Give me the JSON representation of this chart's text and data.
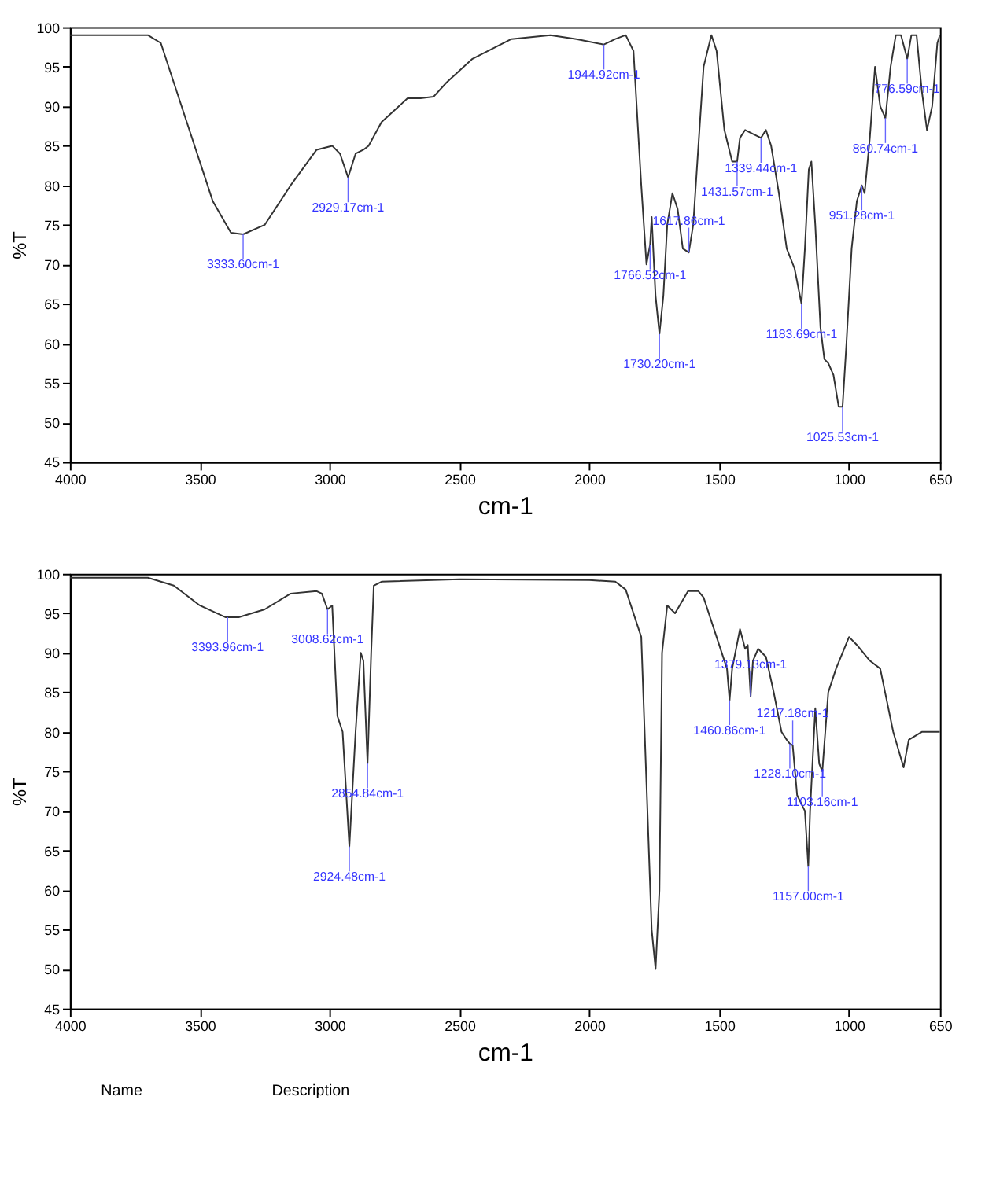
{
  "chart_data": [
    {
      "type": "line",
      "xlabel": "cm-1",
      "ylabel": "%T",
      "xlim": [
        4000,
        650
      ],
      "ylim": [
        45,
        100
      ],
      "xticks": [
        4000,
        3500,
        3000,
        2500,
        2000,
        1500,
        1000,
        650
      ],
      "yticks": [
        45,
        50,
        55,
        60,
        65,
        70,
        75,
        80,
        85,
        90,
        95,
        100
      ],
      "x": [
        4000,
        3700,
        3650,
        3550,
        3450,
        3380,
        3333,
        3250,
        3150,
        3050,
        2990,
        2960,
        2929,
        2900,
        2870,
        2850,
        2800,
        2700,
        2650,
        2600,
        2550,
        2450,
        2300,
        2150,
        2050,
        1944,
        1900,
        1860,
        1830,
        1800,
        1780,
        1766,
        1760,
        1745,
        1730,
        1715,
        1700,
        1680,
        1660,
        1640,
        1617,
        1600,
        1580,
        1560,
        1545,
        1530,
        1510,
        1480,
        1450,
        1431,
        1420,
        1400,
        1370,
        1339,
        1320,
        1300,
        1270,
        1240,
        1210,
        1183,
        1170,
        1155,
        1145,
        1130,
        1110,
        1095,
        1080,
        1060,
        1040,
        1025,
        1010,
        990,
        970,
        951,
        940,
        920,
        900,
        880,
        860,
        840,
        820,
        800,
        776,
        760,
        740,
        720,
        700,
        680,
        660,
        650
      ],
      "series": [
        {
          "color": "#333333",
          "values": [
            99,
            99,
            98,
            88,
            78,
            74,
            73.8,
            75,
            80,
            84.5,
            85,
            84,
            81,
            84,
            84.5,
            85,
            88,
            91,
            91,
            91.2,
            93,
            96,
            98.5,
            99,
            98.5,
            97.8,
            98.5,
            99,
            97,
            80,
            70,
            72.5,
            76,
            66,
            61.2,
            66,
            75,
            79,
            77,
            72,
            71.5,
            75,
            85,
            95,
            97,
            99,
            97,
            87,
            83,
            83,
            86,
            87,
            86.5,
            86,
            87,
            85,
            79,
            72,
            69.5,
            65,
            72,
            82,
            83,
            75,
            62,
            58,
            57.5,
            56,
            52,
            52,
            60,
            72,
            78,
            80,
            79,
            86,
            95,
            90,
            88.5,
            95,
            99,
            99,
            96,
            99,
            99,
            92,
            87,
            90,
            98,
            99
          ]
        }
      ],
      "annotations": [
        {
          "text": "3333.60cm-1",
          "x": 3333,
          "y": 73.8
        },
        {
          "text": "2929.17cm-1",
          "x": 2929,
          "y": 81
        },
        {
          "text": "1944.92cm-1",
          "x": 1944,
          "y": 97.8
        },
        {
          "text": "1766.52cm-1",
          "x": 1766,
          "y": 72.5
        },
        {
          "text": "1730.20cm-1",
          "x": 1730,
          "y": 61.2
        },
        {
          "text": "1617.86cm-1",
          "x": 1617,
          "y": 71.5
        },
        {
          "text": "1431.57cm-1",
          "x": 1431,
          "y": 83
        },
        {
          "text": "1339.44cm-1",
          "x": 1339,
          "y": 86
        },
        {
          "text": "1183.69cm-1",
          "x": 1183,
          "y": 65
        },
        {
          "text": "1025.53cm-1",
          "x": 1025,
          "y": 52
        },
        {
          "text": "951.28cm-1",
          "x": 951,
          "y": 80
        },
        {
          "text": "860.74cm-1",
          "x": 860,
          "y": 88.5
        },
        {
          "text": "776.59cm-1",
          "x": 776,
          "y": 96
        }
      ]
    },
    {
      "type": "line",
      "xlabel": "cm-1",
      "ylabel": "%T",
      "xlim": [
        4000,
        650
      ],
      "ylim": [
        45,
        100
      ],
      "xticks": [
        4000,
        3500,
        3000,
        2500,
        2000,
        1500,
        1000,
        650
      ],
      "yticks": [
        45,
        50,
        55,
        60,
        65,
        70,
        75,
        80,
        85,
        90,
        95,
        100
      ],
      "x": [
        4000,
        3700,
        3600,
        3500,
        3400,
        3350,
        3250,
        3150,
        3050,
        3030,
        3008,
        2990,
        2970,
        2950,
        2924,
        2900,
        2880,
        2870,
        2854,
        2840,
        2830,
        2800,
        2500,
        2000,
        1900,
        1860,
        1800,
        1760,
        1745,
        1730,
        1720,
        1700,
        1670,
        1620,
        1580,
        1560,
        1470,
        1460,
        1450,
        1420,
        1400,
        1390,
        1379,
        1370,
        1350,
        1320,
        1290,
        1260,
        1240,
        1228,
        1217,
        1200,
        1170,
        1157,
        1150,
        1130,
        1115,
        1103,
        1080,
        1050,
        1000,
        970,
        920,
        880,
        830,
        790,
        770,
        720,
        680,
        650
      ],
      "series": [
        {
          "color": "#333333",
          "values": [
            99.5,
            99.5,
            98.5,
            96,
            94.5,
            94.5,
            95.5,
            97.5,
            97.8,
            97.5,
            95.5,
            96,
            82,
            80,
            65.5,
            80,
            90,
            89,
            76,
            90,
            98.5,
            99,
            99.3,
            99.2,
            99,
            98,
            92,
            55,
            50,
            60,
            90,
            96,
            95,
            97.8,
            97.8,
            97,
            88,
            84,
            88,
            93,
            90.5,
            91,
            84.5,
            89,
            90.5,
            89.5,
            85,
            80,
            79,
            78.5,
            78.3,
            72,
            70,
            63,
            70,
            83,
            76,
            75,
            85,
            88,
            92,
            91,
            89,
            88,
            80,
            75.5,
            79,
            80,
            80,
            80
          ]
        }
      ],
      "annotations": [
        {
          "text": "3393.96cm-1",
          "x": 3393,
          "y": 94.5
        },
        {
          "text": "3008.62cm-1",
          "x": 3008,
          "y": 95.5
        },
        {
          "text": "2924.48cm-1",
          "x": 2924,
          "y": 65.5
        },
        {
          "text": "2854.84cm-1",
          "x": 2854,
          "y": 76
        },
        {
          "text": "1460.86cm-1",
          "x": 1460,
          "y": 84
        },
        {
          "text": "1379.13cm-1",
          "x": 1379,
          "y": 84.5
        },
        {
          "text": "1228.10cm-1",
          "x": 1228,
          "y": 78.5
        },
        {
          "text": "1217.18cm-1",
          "x": 1217,
          "y": 78.3
        },
        {
          "text": "1157.00cm-1",
          "x": 1157,
          "y": 63
        },
        {
          "text": "1103.16cm-1",
          "x": 1103,
          "y": 75
        },
        "Name",
        "Description"
      ]
    }
  ]
}
